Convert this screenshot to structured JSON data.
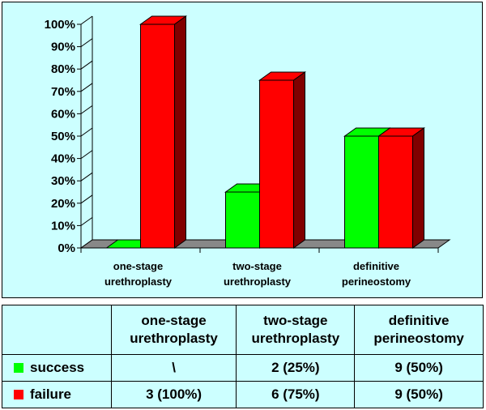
{
  "colors": {
    "background": "#ccffff",
    "success": "#00ff00",
    "failure": "#ff0000",
    "floor": "#888888"
  },
  "chart_data": {
    "type": "bar",
    "categories": [
      [
        "one-stage",
        "urethroplasty"
      ],
      [
        "two-stage",
        "urethroplasty"
      ],
      [
        "definitive",
        "perineostomy"
      ]
    ],
    "series": [
      {
        "name": "success",
        "color": "#00ff00",
        "values": [
          0,
          25,
          50
        ]
      },
      {
        "name": "failure",
        "color": "#ff0000",
        "values": [
          100,
          75,
          50
        ]
      }
    ],
    "y_ticks": [
      "0%",
      "10%",
      "20%",
      "30%",
      "40%",
      "50%",
      "60%",
      "70%",
      "80%",
      "90%",
      "100%"
    ],
    "ylim": [
      0,
      100
    ],
    "grid": false,
    "style": "3d-clustered-column"
  },
  "table": {
    "headers": [
      [
        "one-stage",
        "urethroplasty"
      ],
      [
        "two-stage",
        "urethroplasty"
      ],
      [
        "definitive",
        "perineostomy"
      ]
    ],
    "rows": [
      {
        "label": "success",
        "cells": [
          "\\",
          "2 (25%)",
          "9 (50%)"
        ]
      },
      {
        "label": "failure",
        "cells": [
          "3 (100%)",
          "6 (75%)",
          "9 (50%)"
        ]
      }
    ]
  }
}
